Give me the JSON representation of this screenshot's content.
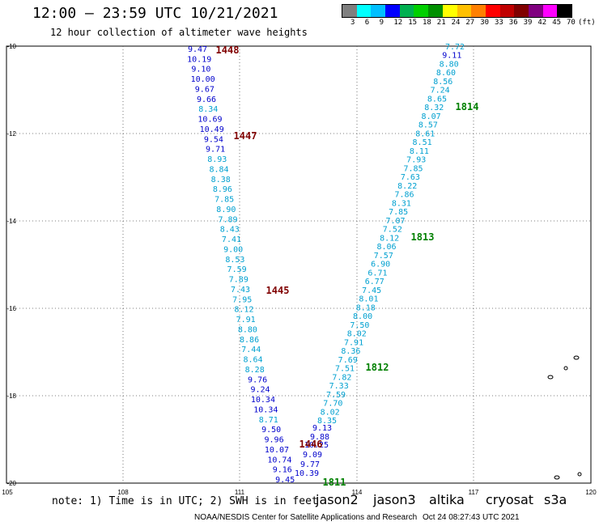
{
  "title": "12:00 — 23:59 UTC 10/21/2021",
  "subtitle": "12 hour collection of altimeter wave heights",
  "colorbar": {
    "colors": [
      "#7f7f7f",
      "#00ffff",
      "#00bfff",
      "#0000ff",
      "#00b050",
      "#00d000",
      "#009000",
      "#ffff00",
      "#ffc000",
      "#ff8000",
      "#ff0000",
      "#c00000",
      "#800000",
      "#800080",
      "#ff00ff",
      "#000000"
    ],
    "labels": [
      "3",
      "6",
      "9",
      "12",
      "15",
      "18",
      "21",
      "24",
      "27",
      "30",
      "33",
      "36",
      "39",
      "42",
      "45",
      "70"
    ],
    "unit": "(ft)"
  },
  "axes": {
    "x_ticks": [
      "105",
      "108",
      "111",
      "114",
      "117",
      "120"
    ],
    "y_ticks": [
      "-10",
      "-12",
      "-14",
      "-16",
      "-18",
      "-20"
    ]
  },
  "colors": {
    "jason2": "#0000cc",
    "jason3": "#008000",
    "altika": "#ff9900",
    "cryosat": "#cc0000",
    "s3a": "#800000",
    "cyan": "#00a0d0"
  },
  "tracks": {
    "left": [
      {
        "v": "9.47",
        "c": "jason2"
      },
      {
        "v": "10.19",
        "c": "jason2"
      },
      {
        "v": "9.10",
        "c": "jason2"
      },
      {
        "v": "10.00",
        "c": "jason2"
      },
      {
        "v": "9.67",
        "c": "jason2"
      },
      {
        "v": "9.66",
        "c": "jason2"
      },
      {
        "v": "8.34",
        "c": "cyan"
      },
      {
        "v": "10.69",
        "c": "jason2"
      },
      {
        "v": "10.49",
        "c": "jason2"
      },
      {
        "v": "9.54",
        "c": "jason2"
      },
      {
        "v": "9.71",
        "c": "jason2"
      },
      {
        "v": "8.93",
        "c": "cyan"
      },
      {
        "v": "8.84",
        "c": "cyan"
      },
      {
        "v": "8.38",
        "c": "cyan"
      },
      {
        "v": "8.96",
        "c": "cyan"
      },
      {
        "v": "7.85",
        "c": "cyan"
      },
      {
        "v": "8.90",
        "c": "cyan"
      },
      {
        "v": "7.89",
        "c": "cyan"
      },
      {
        "v": "8.43",
        "c": "cyan"
      },
      {
        "v": "7.41",
        "c": "cyan"
      },
      {
        "v": "9.00",
        "c": "cyan"
      },
      {
        "v": "8.53",
        "c": "cyan"
      },
      {
        "v": "7.59",
        "c": "cyan"
      },
      {
        "v": "7.89",
        "c": "cyan"
      },
      {
        "v": "7.43",
        "c": "cyan"
      },
      {
        "v": "7.95",
        "c": "cyan"
      },
      {
        "v": "8.12",
        "c": "cyan"
      },
      {
        "v": "7.91",
        "c": "cyan"
      },
      {
        "v": "8.80",
        "c": "cyan"
      },
      {
        "v": "8.86",
        "c": "cyan"
      },
      {
        "v": "7.44",
        "c": "cyan"
      },
      {
        "v": "8.64",
        "c": "cyan"
      },
      {
        "v": "8.28",
        "c": "cyan"
      },
      {
        "v": "9.76",
        "c": "jason2"
      },
      {
        "v": "9.24",
        "c": "jason2"
      },
      {
        "v": "10.34",
        "c": "jason2"
      },
      {
        "v": "10.34",
        "c": "jason2"
      },
      {
        "v": "8.71",
        "c": "cyan"
      },
      {
        "v": "9.50",
        "c": "jason2"
      },
      {
        "v": "9.96",
        "c": "jason2"
      },
      {
        "v": "10.07",
        "c": "jason2"
      },
      {
        "v": "10.74",
        "c": "jason2"
      },
      {
        "v": "9.16",
        "c": "jason2"
      },
      {
        "v": "9.45",
        "c": "jason2"
      }
    ],
    "bottom": [
      {
        "v": "9.13",
        "c": "jason2"
      },
      {
        "v": "9.88",
        "c": "jason2"
      },
      {
        "v": "10.25",
        "c": "jason2"
      },
      {
        "v": "9.09",
        "c": "jason2"
      },
      {
        "v": "9.77",
        "c": "jason2"
      },
      {
        "v": "10.39",
        "c": "jason2"
      }
    ],
    "right": [
      {
        "v": "7.72",
        "c": "cyan"
      },
      {
        "v": "9.11",
        "c": "jason2"
      },
      {
        "v": "8.80",
        "c": "cyan"
      },
      {
        "v": "8.60",
        "c": "cyan"
      },
      {
        "v": "8.56",
        "c": "cyan"
      },
      {
        "v": "7.24",
        "c": "cyan"
      },
      {
        "v": "8.65",
        "c": "cyan"
      },
      {
        "v": "8.32",
        "c": "cyan"
      },
      {
        "v": "8.07",
        "c": "cyan"
      },
      {
        "v": "8.57",
        "c": "cyan"
      },
      {
        "v": "8.61",
        "c": "cyan"
      },
      {
        "v": "8.51",
        "c": "cyan"
      },
      {
        "v": "8.11",
        "c": "cyan"
      },
      {
        "v": "7.93",
        "c": "cyan"
      },
      {
        "v": "7.85",
        "c": "cyan"
      },
      {
        "v": "7.63",
        "c": "cyan"
      },
      {
        "v": "8.22",
        "c": "cyan"
      },
      {
        "v": "7.86",
        "c": "cyan"
      },
      {
        "v": "8.31",
        "c": "cyan"
      },
      {
        "v": "7.85",
        "c": "cyan"
      },
      {
        "v": "7.07",
        "c": "cyan"
      },
      {
        "v": "7.52",
        "c": "cyan"
      },
      {
        "v": "8.12",
        "c": "cyan"
      },
      {
        "v": "8.06",
        "c": "cyan"
      },
      {
        "v": "7.57",
        "c": "cyan"
      },
      {
        "v": "6.90",
        "c": "cyan"
      },
      {
        "v": "6.71",
        "c": "cyan"
      },
      {
        "v": "6.77",
        "c": "cyan"
      },
      {
        "v": "7.45",
        "c": "cyan"
      },
      {
        "v": "8.01",
        "c": "cyan"
      },
      {
        "v": "8.18",
        "c": "cyan"
      },
      {
        "v": "8.00",
        "c": "cyan"
      },
      {
        "v": "7.50",
        "c": "cyan"
      },
      {
        "v": "8.02",
        "c": "cyan"
      },
      {
        "v": "7.91",
        "c": "cyan"
      },
      {
        "v": "8.36",
        "c": "cyan"
      },
      {
        "v": "7.69",
        "c": "cyan"
      },
      {
        "v": "7.51",
        "c": "cyan"
      },
      {
        "v": "7.82",
        "c": "cyan"
      },
      {
        "v": "7.33",
        "c": "cyan"
      },
      {
        "v": "7.59",
        "c": "cyan"
      },
      {
        "v": "7.70",
        "c": "cyan"
      },
      {
        "v": "8.02",
        "c": "cyan"
      },
      {
        "v": "8.35",
        "c": "cyan"
      }
    ]
  },
  "time_labels": [
    {
      "t": "1448",
      "c": "s3a"
    },
    {
      "t": "1447",
      "c": "s3a"
    },
    {
      "t": "1445",
      "c": "s3a"
    },
    {
      "t": "1446",
      "c": "s3a"
    },
    {
      "t": "1814",
      "c": "jason3"
    },
    {
      "t": "1813",
      "c": "jason3"
    },
    {
      "t": "1812",
      "c": "jason3"
    },
    {
      "t": "1811",
      "c": "jason3"
    }
  ],
  "note": "note: 1) Time is in UTC; 2) SWH is in feet",
  "satellites": [
    "jason2",
    "jason3",
    "altika",
    "cryosat",
    "s3a"
  ],
  "footer_left": "NOAA/NESDIS Center for Satellite Applications and Research",
  "footer_right": "Oct 24 08:27:43 UTC 2021"
}
